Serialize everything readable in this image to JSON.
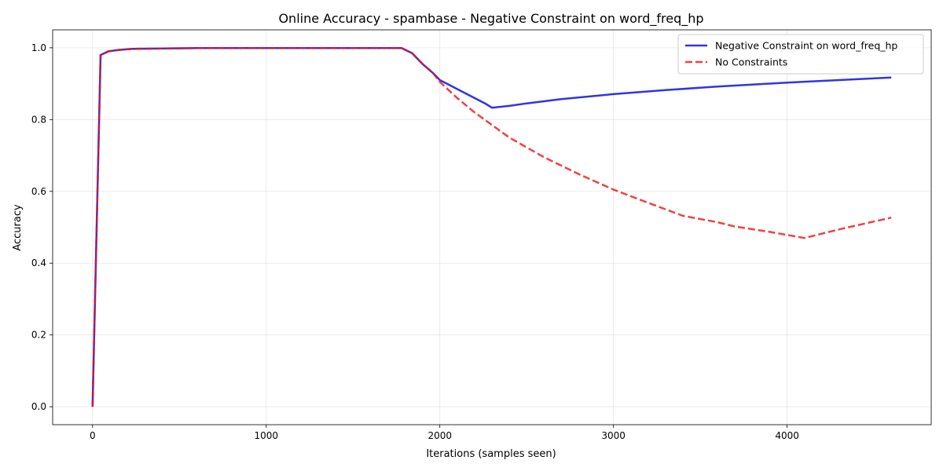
{
  "chart_data": {
    "type": "line",
    "title": "Online Accuracy - spambase - Negative Constraint on word_freq_hp",
    "xlabel": "Iterations (samples seen)",
    "ylabel": "Accuracy",
    "xlim": [
      -230,
      4830
    ],
    "ylim": [
      -0.05,
      1.05
    ],
    "xticks": [
      0,
      1000,
      2000,
      3000,
      4000
    ],
    "xtick_labels": [
      "0",
      "1000",
      "2000",
      "3000",
      "4000"
    ],
    "yticks": [
      0.0,
      0.2,
      0.4,
      0.6,
      0.8,
      1.0
    ],
    "ytick_labels": [
      "0.0",
      "0.2",
      "0.4",
      "0.6",
      "0.8",
      "1.0"
    ],
    "grid": true,
    "legend_position": "top-right",
    "series": [
      {
        "name": "Negative Constraint on word_freq_hp",
        "color": "#0000dd",
        "style": "solid",
        "x": [
          0,
          46,
          92,
          150,
          230,
          400,
          600,
          1000,
          1400,
          1780,
          1840,
          1900,
          1960,
          2000,
          2060,
          2140,
          2200,
          2260,
          2300,
          2400,
          2500,
          2700,
          3000,
          3300,
          3600,
          4000,
          4300,
          4600
        ],
        "y": [
          0.0,
          0.98,
          0.99,
          0.994,
          0.997,
          0.998,
          0.999,
          0.999,
          0.999,
          0.999,
          0.985,
          0.955,
          0.93,
          0.91,
          0.895,
          0.875,
          0.86,
          0.845,
          0.833,
          0.838,
          0.845,
          0.857,
          0.871,
          0.882,
          0.892,
          0.903,
          0.91,
          0.917
        ]
      },
      {
        "name": "No Constraints",
        "color": "#ee1111",
        "style": "dashed",
        "x": [
          0,
          46,
          92,
          150,
          230,
          400,
          600,
          1000,
          1400,
          1780,
          1840,
          1900,
          1960,
          2000,
          2100,
          2200,
          2300,
          2400,
          2600,
          2800,
          3000,
          3200,
          3400,
          3600,
          3700,
          3900,
          4100,
          4300,
          4600
        ],
        "y": [
          0.0,
          0.98,
          0.99,
          0.994,
          0.997,
          0.998,
          0.999,
          0.999,
          0.999,
          0.999,
          0.985,
          0.955,
          0.93,
          0.905,
          0.86,
          0.82,
          0.785,
          0.75,
          0.695,
          0.648,
          0.605,
          0.568,
          0.532,
          0.514,
          0.502,
          0.487,
          0.47,
          0.494,
          0.527
        ]
      }
    ]
  }
}
